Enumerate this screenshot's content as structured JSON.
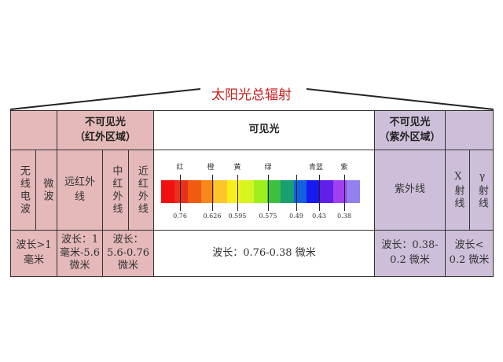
{
  "title": "太阳光总辐射",
  "header": {
    "ir_group": "不可见光",
    "ir_sub": "（红外区域）",
    "visible": "可见光",
    "uv_group": "不可见光",
    "uv_sub": "（紫外区域）"
  },
  "bands": {
    "radio": "无线电波",
    "microwave": "微波",
    "far_ir": "远红外线",
    "mid_ir": "中红外线",
    "near_ir": "近红外线",
    "uv": "紫外线",
    "xray": "X射线",
    "gamma": "γ射线"
  },
  "wavelengths": {
    "radio_micro": [
      "波长>1",
      "毫米"
    ],
    "far_ir": [
      "波长：1",
      "毫米-5.6",
      "微米"
    ],
    "mid_near_ir": [
      "波长：",
      "5.6-0.76",
      "微米"
    ],
    "visible": "波长：0.76-0.38 微米",
    "uv": [
      "波长：0.38-",
      "0.2 微米"
    ],
    "xray_gamma": [
      "波长<",
      "0.2 微米"
    ]
  },
  "spectrum": {
    "color_names": [
      "红",
      "橙",
      "黄",
      "绿",
      "青蓝",
      "紫"
    ],
    "tick_labels": [
      "0.76",
      "0.626",
      "0.595",
      "0.575",
      "0.49",
      "0.43",
      "0.38"
    ],
    "colors": [
      "#f01010",
      "#e8301a",
      "#f05a12",
      "#f8881a",
      "#fcc62a",
      "#f8ee1c",
      "#d6f41e",
      "#9ef01c",
      "#3cc040",
      "#18a070",
      "#1060e0",
      "#1818f0",
      "#6020e8",
      "#a040f0",
      "#9080f0"
    ]
  }
}
